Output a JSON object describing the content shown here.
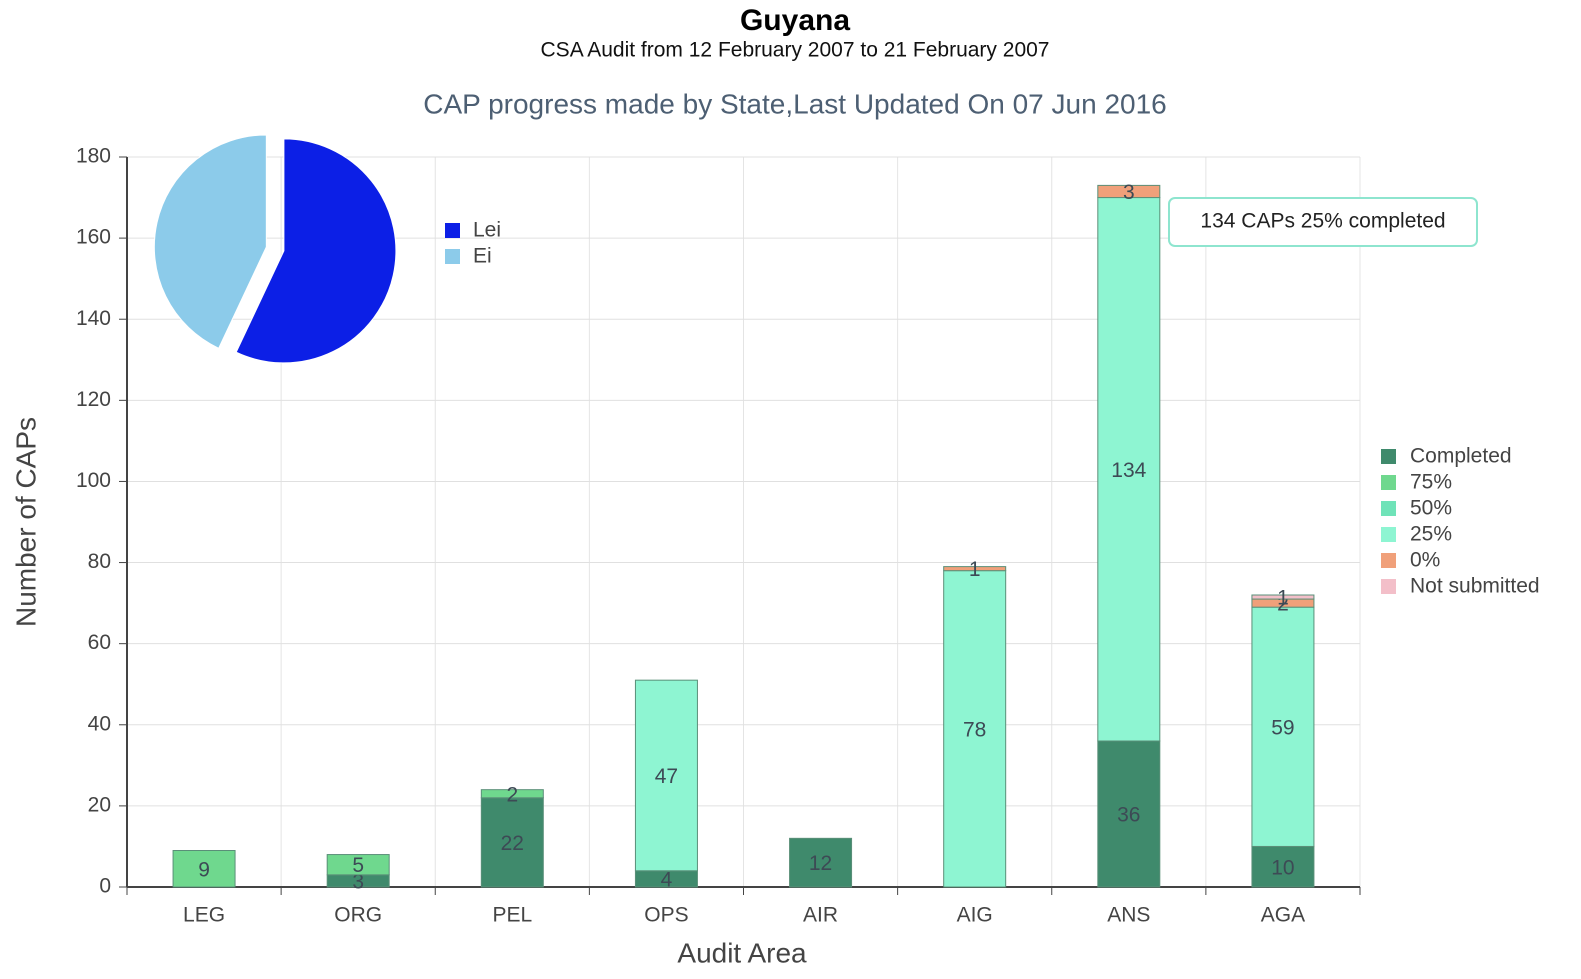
{
  "chart_data": [
    {
      "type": "stacked_bar",
      "title": "Guyana",
      "subtitle": "CSA Audit from 12 February 2007 to 21 February 2007",
      "heading": "CAP progress made by State,Last Updated On 07 Jun 2016",
      "x_label": "Audit Area",
      "y_label": "Number of CAPs",
      "annotation": "134 CAPs 25% completed",
      "categories": [
        "LEG",
        "ORG",
        "PEL",
        "OPS",
        "AIR",
        "AIG",
        "ANS",
        "AGA"
      ],
      "series": [
        {
          "name": "Completed",
          "color": "#3f8a6c",
          "values": [
            null,
            3,
            22,
            4,
            12,
            null,
            36,
            10
          ]
        },
        {
          "name": "75%",
          "color": "#6fd88e",
          "values": [
            9,
            5,
            2,
            null,
            null,
            null,
            null,
            null
          ]
        },
        {
          "name": "50%",
          "color": "#6fe3b8",
          "values": [
            null,
            null,
            null,
            null,
            null,
            null,
            null,
            null
          ]
        },
        {
          "name": "25%",
          "color": "#8ef5d2",
          "values": [
            null,
            null,
            null,
            47,
            null,
            78,
            134,
            59
          ]
        },
        {
          "name": "0%",
          "color": "#f0a07a",
          "values": [
            null,
            null,
            null,
            null,
            null,
            1,
            3,
            2
          ]
        },
        {
          "name": "Not submitted",
          "color": "#f3bfc9",
          "values": [
            null,
            null,
            null,
            null,
            null,
            null,
            null,
            1
          ]
        }
      ],
      "ylim": [
        0,
        180
      ],
      "yticks": [
        0,
        20,
        40,
        60,
        80,
        100,
        120,
        140,
        160,
        180
      ],
      "grid": true,
      "legend": "right"
    },
    {
      "type": "pie",
      "categories": [
        "Lei",
        "Ei"
      ],
      "values": [
        57,
        43
      ],
      "colors": [
        "#0c1fe6",
        "#8ccbea"
      ]
    }
  ]
}
